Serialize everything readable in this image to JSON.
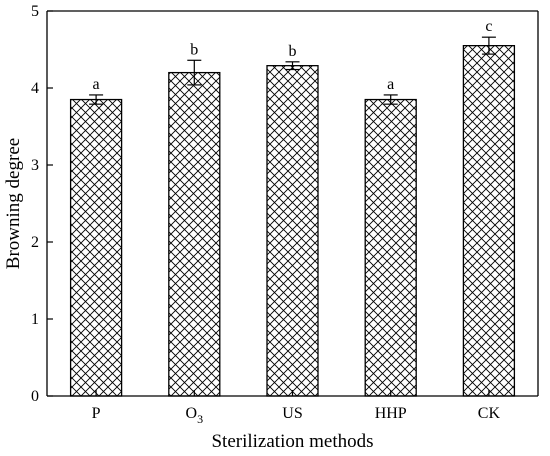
{
  "chart_data": {
    "type": "bar",
    "title": "",
    "xlabel": "Sterilization methods",
    "ylabel": "Browning degree",
    "ylim": [
      0,
      5
    ],
    "yticks": [
      0,
      1,
      2,
      3,
      4,
      5
    ],
    "grid": false,
    "legend": "none",
    "bar_fill": "crosshatch",
    "colors": {
      "bar_stroke": "#000000",
      "hatch": "#000000",
      "background": "#ffffff"
    },
    "categories": [
      {
        "label": "P",
        "sub": ""
      },
      {
        "label": "O",
        "sub": "3"
      },
      {
        "label": "US",
        "sub": ""
      },
      {
        "label": "HHP",
        "sub": ""
      },
      {
        "label": "CK",
        "sub": ""
      }
    ],
    "values": [
      3.85,
      4.2,
      4.29,
      3.85,
      4.55
    ],
    "errors": [
      0.06,
      0.16,
      0.05,
      0.06,
      0.11
    ],
    "significance": [
      "a",
      "b",
      "b",
      "a",
      "c"
    ]
  }
}
